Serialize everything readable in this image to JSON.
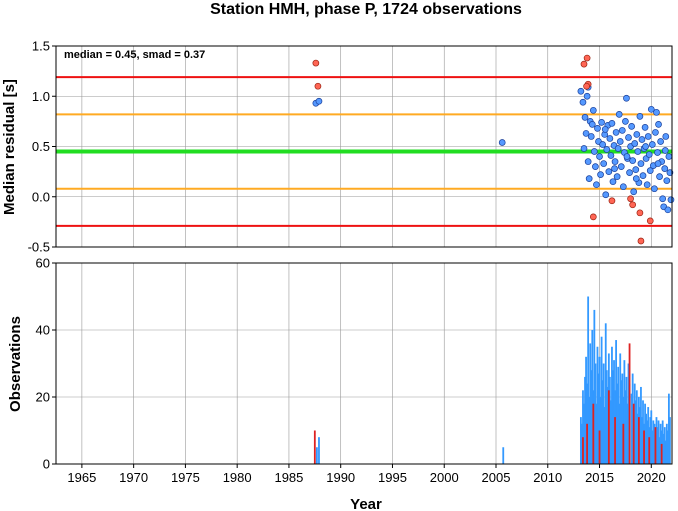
{
  "title": "Station HMH, phase P, 1724 observations",
  "colors": {
    "red_line": "#ee1111",
    "orange_line": "#ffaa22",
    "green_line": "#22dd22",
    "point_blue": "#5599ff",
    "point_red": "#ff6655",
    "bar_blue": "#3399ff",
    "bar_red": "#dd2222"
  },
  "chart_data": [
    {
      "type": "scatter",
      "ylabel": "Median residual [s]",
      "annotation": "median = 0.45, smad = 0.37",
      "xlim": [
        1962.5,
        2022
      ],
      "ylim": [
        -0.5,
        1.5
      ],
      "yticks": [
        "1.5",
        "1.0",
        "0.5",
        "0.0",
        "-0.5"
      ],
      "ytick_values": [
        1.5,
        1.0,
        0.5,
        0.0,
        -0.5
      ],
      "grid": true,
      "hlines": [
        {
          "y": 1.19,
          "color": "red"
        },
        {
          "y": 0.82,
          "color": "orange"
        },
        {
          "y": 0.45,
          "color": "green"
        },
        {
          "y": 0.08,
          "color": "orange"
        },
        {
          "y": -0.29,
          "color": "red"
        }
      ],
      "points_blue": [
        [
          1987.6,
          0.93
        ],
        [
          1987.9,
          0.95
        ],
        [
          2005.6,
          0.54
        ],
        [
          2013.2,
          1.05
        ],
        [
          2013.4,
          0.94
        ],
        [
          2013.6,
          0.79
        ],
        [
          2013.8,
          1.0
        ],
        [
          2013.9,
          1.09
        ],
        [
          2013.7,
          0.63
        ],
        [
          2013.9,
          0.35
        ],
        [
          2014.0,
          0.18
        ],
        [
          2014.1,
          0.75
        ],
        [
          2014.2,
          0.6
        ],
        [
          2014.3,
          0.72
        ],
        [
          2014.5,
          0.45
        ],
        [
          2014.6,
          0.3
        ],
        [
          2014.7,
          0.12
        ],
        [
          2014.8,
          0.68
        ],
        [
          2014.9,
          0.55
        ],
        [
          2015.0,
          0.4
        ],
        [
          2015.1,
          0.22
        ],
        [
          2015.2,
          0.74
        ],
        [
          2015.3,
          0.52
        ],
        [
          2015.4,
          0.33
        ],
        [
          2015.5,
          0.62
        ],
        [
          2015.6,
          0.02
        ],
        [
          2015.7,
          0.47
        ],
        [
          2015.8,
          0.71
        ],
        [
          2015.9,
          0.25
        ],
        [
          2016.0,
          0.58
        ],
        [
          2016.1,
          0.41
        ],
        [
          2016.2,
          0.73
        ],
        [
          2016.3,
          0.15
        ],
        [
          2016.4,
          0.51
        ],
        [
          2016.5,
          0.35
        ],
        [
          2016.6,
          0.64
        ],
        [
          2016.7,
          0.2
        ],
        [
          2016.8,
          0.48
        ],
        [
          2016.9,
          0.82
        ],
        [
          2017.0,
          0.55
        ],
        [
          2017.1,
          0.3
        ],
        [
          2017.2,
          0.66
        ],
        [
          2017.3,
          0.1
        ],
        [
          2017.4,
          0.44
        ],
        [
          2017.5,
          0.75
        ],
        [
          2017.6,
          0.98
        ],
        [
          2017.7,
          0.38
        ],
        [
          2017.8,
          0.59
        ],
        [
          2017.9,
          0.24
        ],
        [
          2018.0,
          0.5
        ],
        [
          2018.1,
          0.7
        ],
        [
          2018.2,
          0.36
        ],
        [
          2018.3,
          0.05
        ],
        [
          2018.4,
          0.53
        ],
        [
          2018.5,
          0.27
        ],
        [
          2018.6,
          0.62
        ],
        [
          2018.7,
          0.45
        ],
        [
          2018.8,
          0.14
        ],
        [
          2018.9,
          0.8
        ],
        [
          2019.0,
          0.33
        ],
        [
          2019.1,
          0.57
        ],
        [
          2019.2,
          0.21
        ],
        [
          2019.3,
          0.48
        ],
        [
          2019.4,
          0.69
        ],
        [
          2019.5,
          0.38
        ],
        [
          2019.6,
          0.12
        ],
        [
          2019.7,
          0.6
        ],
        [
          2019.8,
          0.42
        ],
        [
          2019.9,
          0.26
        ],
        [
          2020.0,
          0.87
        ],
        [
          2020.1,
          0.52
        ],
        [
          2020.2,
          0.31
        ],
        [
          2020.3,
          0.08
        ],
        [
          2020.4,
          0.64
        ],
        [
          2020.5,
          0.84
        ],
        [
          2020.6,
          0.44
        ],
        [
          2020.7,
          0.72
        ],
        [
          2020.8,
          0.2
        ],
        [
          2020.9,
          0.55
        ],
        [
          2021.0,
          0.35
        ],
        [
          2021.1,
          -0.02
        ],
        [
          2021.2,
          -0.1
        ],
        [
          2021.3,
          0.28
        ],
        [
          2021.4,
          0.6
        ],
        [
          2021.5,
          0.16
        ],
        [
          2021.6,
          -0.13
        ],
        [
          2021.7,
          0.4
        ],
        [
          2021.8,
          0.24
        ],
        [
          2021.9,
          -0.03
        ],
        [
          2013.5,
          0.48
        ],
        [
          2014.4,
          0.86
        ],
        [
          2015.55,
          0.67
        ],
        [
          2016.45,
          0.28
        ],
        [
          2017.65,
          0.4
        ],
        [
          2018.55,
          0.18
        ],
        [
          2019.45,
          0.5
        ],
        [
          2020.65,
          0.33
        ],
        [
          2021.35,
          0.46
        ]
      ],
      "points_red": [
        [
          1987.6,
          1.33
        ],
        [
          1987.8,
          1.1
        ],
        [
          2013.5,
          1.32
        ],
        [
          2013.8,
          1.38
        ],
        [
          2013.9,
          1.12
        ],
        [
          2013.75,
          1.1
        ],
        [
          2014.4,
          -0.2
        ],
        [
          2016.2,
          -0.04
        ],
        [
          2018.0,
          -0.02
        ],
        [
          2018.2,
          -0.08
        ],
        [
          2018.9,
          -0.16
        ],
        [
          2019.0,
          -0.44
        ],
        [
          2019.9,
          -0.24
        ]
      ]
    },
    {
      "type": "bar",
      "ylabel": "Observations",
      "xlabel": "Year",
      "xlim": [
        1962.5,
        2022
      ],
      "ylim": [
        0,
        60
      ],
      "yticks": [
        "60",
        "40",
        "20",
        "0"
      ],
      "ytick_values": [
        60,
        40,
        20,
        0
      ],
      "xticks": [
        "1965",
        "1970",
        "1975",
        "1980",
        "1985",
        "1990",
        "1995",
        "2000",
        "2005",
        "2010",
        "2015",
        "2020"
      ],
      "xtick_values": [
        1965,
        1970,
        1975,
        1980,
        1985,
        1990,
        1995,
        2000,
        2005,
        2010,
        2015,
        2020
      ],
      "grid": true,
      "bars_blue": [
        [
          1987.7,
          5
        ],
        [
          1987.9,
          8
        ],
        [
          2005.7,
          5
        ],
        [
          2013.2,
          14
        ],
        [
          2013.3,
          12
        ],
        [
          2013.4,
          22
        ],
        [
          2013.5,
          18
        ],
        [
          2013.6,
          26
        ],
        [
          2013.7,
          32
        ],
        [
          2013.8,
          24
        ],
        [
          2013.9,
          50
        ],
        [
          2014.0,
          20
        ],
        [
          2014.1,
          36
        ],
        [
          2014.2,
          28
        ],
        [
          2014.3,
          40
        ],
        [
          2014.4,
          22
        ],
        [
          2014.5,
          46
        ],
        [
          2014.6,
          30
        ],
        [
          2014.7,
          18
        ],
        [
          2014.8,
          35
        ],
        [
          2014.9,
          27
        ],
        [
          2015.0,
          32
        ],
        [
          2015.1,
          20
        ],
        [
          2015.2,
          38
        ],
        [
          2015.3,
          25
        ],
        [
          2015.4,
          30
        ],
        [
          2015.5,
          17
        ],
        [
          2015.6,
          42
        ],
        [
          2015.7,
          28
        ],
        [
          2015.8,
          23
        ],
        [
          2015.9,
          33
        ],
        [
          2016.0,
          26
        ],
        [
          2016.1,
          19
        ],
        [
          2016.2,
          35
        ],
        [
          2016.3,
          28
        ],
        [
          2016.4,
          31
        ],
        [
          2016.5,
          22
        ],
        [
          2016.6,
          37
        ],
        [
          2016.7,
          24
        ],
        [
          2016.8,
          29
        ],
        [
          2016.9,
          18
        ],
        [
          2017.0,
          33
        ],
        [
          2017.1,
          25
        ],
        [
          2017.2,
          27
        ],
        [
          2017.3,
          20
        ],
        [
          2017.4,
          31
        ],
        [
          2017.5,
          22
        ],
        [
          2017.6,
          26
        ],
        [
          2017.7,
          18
        ],
        [
          2017.8,
          30
        ],
        [
          2017.9,
          24
        ],
        [
          2018.1,
          21
        ],
        [
          2018.2,
          27
        ],
        [
          2018.3,
          16
        ],
        [
          2018.4,
          24
        ],
        [
          2018.5,
          19
        ],
        [
          2018.6,
          22
        ],
        [
          2018.7,
          15
        ],
        [
          2018.8,
          20
        ],
        [
          2018.9,
          17
        ],
        [
          2019.0,
          23
        ],
        [
          2019.1,
          14
        ],
        [
          2019.2,
          19
        ],
        [
          2019.3,
          12
        ],
        [
          2019.4,
          18
        ],
        [
          2019.5,
          15
        ],
        [
          2019.6,
          13
        ],
        [
          2019.7,
          17
        ],
        [
          2019.8,
          11
        ],
        [
          2019.9,
          14
        ],
        [
          2020.0,
          16
        ],
        [
          2020.1,
          10
        ],
        [
          2020.2,
          13
        ],
        [
          2020.3,
          12
        ],
        [
          2020.4,
          9
        ],
        [
          2020.5,
          14
        ],
        [
          2020.6,
          11
        ],
        [
          2020.7,
          13
        ],
        [
          2020.8,
          8
        ],
        [
          2020.9,
          12
        ],
        [
          2021.0,
          10
        ],
        [
          2021.1,
          13
        ],
        [
          2021.2,
          9
        ],
        [
          2021.3,
          11
        ],
        [
          2021.4,
          7
        ],
        [
          2021.5,
          12
        ],
        [
          2021.6,
          10
        ],
        [
          2021.7,
          21
        ],
        [
          2021.8,
          14
        ]
      ],
      "bars_red": [
        [
          1987.5,
          10
        ],
        [
          2013.4,
          8
        ],
        [
          2013.8,
          12
        ],
        [
          2014.4,
          18
        ],
        [
          2015.0,
          10
        ],
        [
          2015.9,
          22
        ],
        [
          2016.5,
          14
        ],
        [
          2017.3,
          12
        ],
        [
          2017.9,
          36
        ],
        [
          2018.3,
          18
        ],
        [
          2018.8,
          14
        ],
        [
          2019.3,
          10
        ],
        [
          2019.8,
          8
        ],
        [
          2020.4,
          11
        ],
        [
          2021.0,
          6
        ]
      ]
    }
  ]
}
